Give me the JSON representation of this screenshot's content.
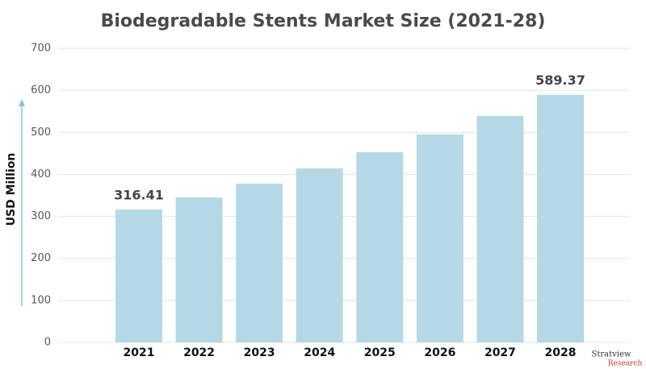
{
  "chart_data": {
    "type": "bar",
    "title": "Biodegradable Stents Market Size (2021-28)",
    "y_label": "USD Million",
    "categories": [
      "2021",
      "2022",
      "2023",
      "2024",
      "2025",
      "2026",
      "2027",
      "2028"
    ],
    "values": [
      316.41,
      345,
      378,
      414,
      453,
      495,
      539,
      589.37
    ],
    "value_labels": [
      "316.41",
      null,
      null,
      null,
      null,
      null,
      null,
      "589.37"
    ],
    "color": "#b5d8e5",
    "ylim": [
      0,
      700
    ],
    "yticks": [
      0,
      100,
      200,
      300,
      400,
      500,
      600,
      700
    ],
    "grid": true,
    "logo": {
      "name": "Stratview",
      "sub": "Research"
    }
  }
}
